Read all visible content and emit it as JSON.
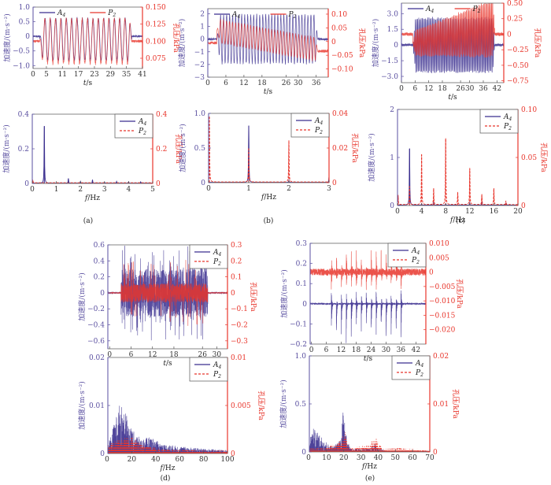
{
  "colors": {
    "a4": "#3b2f8f",
    "p2": "#e8352b",
    "left_axis": "#5a4fa0",
    "right_axis": "#e8352b",
    "frame": "#555555"
  },
  "legend": {
    "a4": "A4",
    "p2": "P2"
  },
  "chart_data": [
    {
      "id": "a-time",
      "panel": "(a)",
      "type": "line",
      "kind": "time",
      "xlabel": "t/s",
      "ylabel": "加速度/(m·s⁻²)",
      "y2label": "孔压/kPa",
      "xlim": [
        0,
        41
      ],
      "ylim": [
        -1.1,
        1.0
      ],
      "y2lim": [
        0.06,
        0.15
      ],
      "xticks": [
        0,
        5,
        11,
        17,
        23,
        29,
        35,
        41
      ],
      "yticks": [
        {
          "v": 1.0,
          "l": "1.0"
        },
        {
          "v": 0.5,
          "l": "0.5"
        },
        {
          "v": 0,
          "l": "0"
        },
        {
          "v": -0.5,
          "l": "-0.5"
        },
        {
          "v": -1.0,
          "l": "-1.0"
        }
      ],
      "y2ticks": [
        {
          "v": 0.15,
          "l": "0.150"
        },
        {
          "v": 0.125,
          "l": "0.125"
        },
        {
          "v": 0.1,
          "l": "0.100"
        },
        {
          "v": 0.075,
          "l": "0.075"
        }
      ],
      "legend_position": "top",
      "signal": {
        "freq_hz": 0.5,
        "start": 2.5,
        "end": 37,
        "a4_amp": 0.75,
        "a4_offset": -0.1,
        "p2_amp": 0.035,
        "p2_center": 0.1,
        "pre_a4": 0.0,
        "pre_p2": 0.1
      }
    },
    {
      "id": "a-freq",
      "panel": "(a)",
      "type": "line",
      "kind": "spectrum",
      "xlabel": "f/Hz",
      "ylabel": "加速度/(m·s⁻²)",
      "y2label": "孔压/kPa",
      "xlim": [
        0,
        5
      ],
      "ylim": [
        0,
        0.4
      ],
      "y2lim": [
        0,
        0.4
      ],
      "xticks": [
        0,
        1,
        2,
        3,
        4,
        5
      ],
      "yticks": [
        {
          "v": 0.4,
          "l": "0.4"
        },
        {
          "v": 0.2,
          "l": "0.2"
        },
        {
          "v": 0,
          "l": "0"
        }
      ],
      "y2ticks": [
        {
          "v": 0.4,
          "l": "0.4"
        },
        {
          "v": 0.2,
          "l": "0.2"
        },
        {
          "v": 0,
          "l": "0"
        }
      ],
      "legend_position": "top-right",
      "a4_peaks": [
        {
          "f": 0.5,
          "v": 0.33
        },
        {
          "f": 1.5,
          "v": 0.028
        },
        {
          "f": 2.0,
          "v": 0.01
        },
        {
          "f": 2.5,
          "v": 0.02
        },
        {
          "f": 3.0,
          "v": 0.006
        },
        {
          "f": 3.5,
          "v": 0.01
        },
        {
          "f": 4.0,
          "v": 0.008
        },
        {
          "f": 4.5,
          "v": 0.008
        }
      ],
      "p2_peaks": [
        {
          "f": 0.02,
          "v": 0.02
        }
      ]
    },
    {
      "id": "b-time",
      "panel": "(b)",
      "type": "line",
      "kind": "time",
      "xlabel": "t/s",
      "ylabel": "加速度/(m·s⁻²)",
      "y2label": "孔压/kPa",
      "xlim": [
        0,
        40
      ],
      "ylim": [
        -3,
        2.4
      ],
      "y2lim": [
        -0.13,
        0.12
      ],
      "xticks": [
        0,
        6,
        12,
        18,
        26,
        30,
        36
      ],
      "yticks": [
        {
          "v": 2,
          "l": "2"
        },
        {
          "v": 1,
          "l": "1"
        },
        {
          "v": 0,
          "l": "0"
        },
        {
          "v": -1,
          "l": "-1"
        },
        {
          "v": -2,
          "l": "-2"
        },
        {
          "v": -3,
          "l": "-3"
        }
      ],
      "y2ticks": [
        {
          "v": 0.1,
          "l": "0.10"
        },
        {
          "v": 0.05,
          "l": "0.05"
        },
        {
          "v": 0,
          "l": "0"
        },
        {
          "v": -0.05,
          "l": "-0.05"
        },
        {
          "v": -0.1,
          "l": "-0.10"
        }
      ],
      "legend_position": "top",
      "signal": {
        "freq_hz": 1.0,
        "start": 3,
        "end": 36.5,
        "a4_amp": 2.0,
        "a4_offset": 0,
        "p2_amp": 0.045,
        "p2_center_start": 0.04,
        "p2_center_end": -0.03,
        "pre_a4": 0,
        "pre_p2": -0.005,
        "post_p2": -0.035
      }
    },
    {
      "id": "b-freq",
      "panel": "(b)",
      "type": "line",
      "kind": "spectrum",
      "xlabel": "f/Hz",
      "ylabel": "加速度/(m·s⁻²)",
      "y2label": "孔压/kPa",
      "xlim": [
        0,
        3
      ],
      "ylim": [
        0,
        1.0
      ],
      "y2lim": [
        0,
        0.04
      ],
      "xticks": [
        0,
        1,
        2,
        3
      ],
      "yticks": [
        {
          "v": 1.0,
          "l": "1.0"
        },
        {
          "v": 0.5,
          "l": "0.5"
        },
        {
          "v": 0,
          "l": "0"
        }
      ],
      "y2ticks": [
        {
          "v": 0.04,
          "l": "0.04"
        },
        {
          "v": 0.02,
          "l": "0.02"
        },
        {
          "v": 0,
          "l": "0"
        }
      ],
      "legend_position": "top-right",
      "a4_peaks": [
        {
          "f": 1.0,
          "v": 0.82
        },
        {
          "f": 2.0,
          "v": 0.03
        },
        {
          "f": 3.0,
          "v": 0.08
        }
      ],
      "p2_peaks": [
        {
          "f": 0.02,
          "v": 0.038
        },
        {
          "f": 1.0,
          "v": 0.02
        },
        {
          "f": 2.0,
          "v": 0.024
        }
      ]
    },
    {
      "id": "c-time",
      "panel": "(c)",
      "type": "line",
      "kind": "time",
      "xlabel": "t/s",
      "ylabel": "加速度/(m·s⁻²)",
      "y2label": "孔压/kPa",
      "xlim": [
        0,
        45
      ],
      "ylim": [
        -3.6,
        4.0
      ],
      "y2lim": [
        -0.78,
        0.5
      ],
      "xticks": [
        0,
        6,
        12,
        18,
        26,
        30,
        36,
        42
      ],
      "yticks": [
        {
          "v": 3.0,
          "l": "3.0"
        },
        {
          "v": 1.5,
          "l": "1.5"
        },
        {
          "v": 0,
          "l": "0"
        },
        {
          "v": -1.5,
          "l": "-1.5"
        },
        {
          "v": -3.0,
          "l": "-3.0"
        }
      ],
      "y2ticks": [
        {
          "v": 0.5,
          "l": "0.50"
        },
        {
          "v": 0.25,
          "l": "0.25"
        },
        {
          "v": 0,
          "l": "0"
        },
        {
          "v": -0.25,
          "l": "-0.25"
        },
        {
          "v": -0.5,
          "l": "-0.50"
        },
        {
          "v": -0.75,
          "l": "-0.75"
        }
      ],
      "legend_position": "top",
      "signal": {
        "freq_hz": 2.0,
        "start": 5,
        "end": 41,
        "a4_amp": 2.7,
        "a4_offset": 0,
        "p2_amp": 0.35,
        "p2_center": -0.15,
        "pre_a4": 0,
        "pre_p2": 0.0
      }
    },
    {
      "id": "c-freq",
      "panel": "(c)",
      "type": "line",
      "kind": "spectrum",
      "xlabel": "f/Hz",
      "ylabel": "加速度/(m·s⁻²)",
      "y2label": "孔压/kPa",
      "xlim": [
        0,
        20
      ],
      "ylim": [
        0,
        2
      ],
      "y2lim": [
        0,
        0.1
      ],
      "xticks": [
        0,
        4,
        8,
        12,
        16,
        20
      ],
      "yticks": [
        {
          "v": 2,
          "l": "2"
        },
        {
          "v": 1,
          "l": "1"
        },
        {
          "v": 0,
          "l": "0"
        }
      ],
      "y2ticks": [
        {
          "v": 0.1,
          "l": "0.10"
        },
        {
          "v": 0.05,
          "l": "0.05"
        },
        {
          "v": 0,
          "l": "0"
        }
      ],
      "legend_position": "top-right",
      "a4_peaks": [
        {
          "f": 2,
          "v": 1.18
        },
        {
          "f": 4,
          "v": 0.03
        },
        {
          "f": 6,
          "v": 0.05
        },
        {
          "f": 8,
          "v": 0.03
        },
        {
          "f": 12,
          "v": 0.05
        },
        {
          "f": 14,
          "v": 0.05
        },
        {
          "f": 18,
          "v": 0.04
        }
      ],
      "p2_peaks": [
        {
          "f": 0.1,
          "v": 0.01
        },
        {
          "f": 2,
          "v": 0.02
        },
        {
          "f": 4,
          "v": 0.053
        },
        {
          "f": 6,
          "v": 0.017
        },
        {
          "f": 8,
          "v": 0.069
        },
        {
          "f": 10,
          "v": 0.013
        },
        {
          "f": 12,
          "v": 0.038
        },
        {
          "f": 14,
          "v": 0.011
        },
        {
          "f": 16,
          "v": 0.017
        },
        {
          "f": 18,
          "v": 0.004
        }
      ]
    },
    {
      "id": "d-time",
      "panel": "(d)",
      "type": "line",
      "kind": "noise-time",
      "xlabel": "t/s",
      "ylabel": "加速度/(m·s⁻²)",
      "y2label": "孔压/kPa",
      "xlim": [
        -0.5,
        33
      ],
      "ylim": [
        -0.7,
        0.6
      ],
      "y2lim": [
        -0.35,
        0.3
      ],
      "xticks": [
        0,
        6,
        12,
        18,
        26,
        30
      ],
      "yticks": [
        {
          "v": 0.6,
          "l": "0.6"
        },
        {
          "v": 0.4,
          "l": "0.4"
        },
        {
          "v": 0.2,
          "l": "0.2"
        },
        {
          "v": 0,
          "l": "0"
        },
        {
          "v": -0.2,
          "l": "-0.2"
        },
        {
          "v": -0.4,
          "l": "-0.4"
        },
        {
          "v": -0.6,
          "l": "-0.6"
        }
      ],
      "y2ticks": [
        {
          "v": 0.3,
          "l": "0.3"
        },
        {
          "v": 0.2,
          "l": "0.2"
        },
        {
          "v": 0.1,
          "l": "0.1"
        },
        {
          "v": 0,
          "l": "0"
        },
        {
          "v": -0.1,
          "l": "-0.1"
        },
        {
          "v": -0.2,
          "l": "-0.2"
        },
        {
          "v": -0.3,
          "l": "-0.3"
        }
      ],
      "legend_position": "top-right",
      "signal": {
        "start": 3.2,
        "end": 27.5,
        "a4_amp": 0.3,
        "p2_amp": 0.06
      }
    },
    {
      "id": "d-freq",
      "panel": "(d)",
      "type": "area",
      "kind": "noise-spectrum",
      "xlabel": "f/Hz",
      "ylabel": "加速度/(m·s⁻²)",
      "y2label": "孔压/kPa",
      "xlim": [
        0,
        100
      ],
      "ylim": [
        0,
        0.02
      ],
      "y2lim": [
        0,
        0.01
      ],
      "xticks": [
        20,
        40,
        60,
        80,
        100
      ],
      "xzero": "0",
      "yticks": [
        {
          "v": 0.02,
          "l": "0.02"
        },
        {
          "v": 0.01,
          "l": "0.01"
        },
        {
          "v": 0,
          "l": "0"
        }
      ],
      "y2ticks": [
        {
          "v": 0.01,
          "l": "0.01"
        },
        {
          "v": 0.005,
          "l": "0.005"
        },
        {
          "v": 0,
          "l": "0"
        }
      ],
      "legend_position": "top-right",
      "a4_envelope": [
        [
          0,
          0.002
        ],
        [
          5,
          0.006
        ],
        [
          10,
          0.0105
        ],
        [
          14,
          0.009
        ],
        [
          20,
          0.005
        ],
        [
          28,
          0.003
        ],
        [
          36,
          0.0035
        ],
        [
          45,
          0.002
        ],
        [
          60,
          0.0015
        ],
        [
          80,
          0.001
        ],
        [
          100,
          0.0007
        ]
      ],
      "p2_envelope": [
        [
          0,
          0.0008
        ],
        [
          8,
          0.0015
        ],
        [
          20,
          0.0018
        ],
        [
          30,
          0.0008
        ],
        [
          50,
          0.0004
        ],
        [
          100,
          0.0003
        ]
      ]
    },
    {
      "id": "e-time",
      "panel": "(e)",
      "type": "line",
      "kind": "burst-time",
      "xlabel": "t/s",
      "ylabel": "加速度/(m·s⁻²)",
      "y2label": "孔压/kPa",
      "xlim": [
        -0.5,
        46
      ],
      "ylim": [
        -0.2,
        0.3
      ],
      "y2lim": [
        -0.025,
        0.01
      ],
      "xticks": [
        0,
        6,
        12,
        18,
        24,
        30,
        36,
        42
      ],
      "yticks": [
        {
          "v": 0.3,
          "l": "0.3"
        },
        {
          "v": 0.2,
          "l": "0.2"
        },
        {
          "v": 0.1,
          "l": "0.1"
        },
        {
          "v": 0,
          "l": "0"
        },
        {
          "v": -0.1,
          "l": "-0.1"
        },
        {
          "v": -0.2,
          "l": "-0.2"
        }
      ],
      "y2ticks": [
        {
          "v": 0.01,
          "l": "0.010"
        },
        {
          "v": 0.005,
          "l": "0.005"
        },
        {
          "v": 0,
          "l": "0"
        },
        {
          "v": -0.005,
          "l": "-0.005"
        },
        {
          "v": -0.01,
          "l": "-0.010"
        },
        {
          "v": -0.015,
          "l": "-0.015"
        },
        {
          "v": -0.02,
          "l": "-0.020"
        }
      ],
      "legend_position": "top-right",
      "bursts_t": [
        8,
        10,
        12,
        14,
        16,
        18,
        20,
        22,
        24,
        26,
        28,
        30,
        32,
        34,
        36
      ],
      "signal": {
        "a4_burst": 0.2,
        "p2_burst": 0.008,
        "p2_center": 0.0,
        "a4_center": 0.0
      }
    },
    {
      "id": "e-freq",
      "panel": "(e)",
      "type": "area",
      "kind": "noise-spectrum",
      "xlabel": "f/Hz",
      "ylabel": "加速度/(m·s⁻²)",
      "y2label": "孔压/kPa",
      "xlim": [
        0,
        70
      ],
      "ylim": [
        0,
        1.0
      ],
      "y2lim": [
        0,
        0.02
      ],
      "xticks": [
        10,
        20,
        30,
        40,
        50,
        60,
        70
      ],
      "xzero": "0",
      "yticks": [
        {
          "v": 1.0,
          "l": "1.0"
        },
        {
          "v": 0.5,
          "l": "0.5"
        },
        {
          "v": 0,
          "l": "0"
        }
      ],
      "y2ticks": [
        {
          "v": 0.02,
          "l": "0.02"
        },
        {
          "v": 0.01,
          "l": "0.01"
        },
        {
          "v": 0,
          "l": "0"
        }
      ],
      "legend_position": "top-right",
      "a4_envelope": [
        [
          0,
          0.12
        ],
        [
          2,
          0.25
        ],
        [
          5,
          0.2
        ],
        [
          8,
          0.15
        ],
        [
          11,
          0.08
        ],
        [
          14,
          0.05
        ],
        [
          17,
          0.12
        ],
        [
          18.5,
          0.15
        ],
        [
          19,
          0.3
        ],
        [
          20,
          0.5
        ],
        [
          21,
          0.35
        ],
        [
          22,
          0.1
        ],
        [
          25,
          0.03
        ],
        [
          35,
          0.03
        ],
        [
          38,
          0.08
        ],
        [
          40,
          0.05
        ],
        [
          42,
          0.03
        ],
        [
          45,
          0.01
        ],
        [
          70,
          0.01
        ]
      ],
      "p2_envelope": [
        [
          0,
          0.0008
        ],
        [
          10,
          0.001
        ],
        [
          13,
          0.002
        ],
        [
          15,
          0.0012
        ],
        [
          19,
          0.003
        ],
        [
          20,
          0.005
        ],
        [
          21,
          0.004
        ],
        [
          23,
          0.0008
        ],
        [
          35,
          0.0015
        ],
        [
          38,
          0.0035
        ],
        [
          40,
          0.002
        ],
        [
          43,
          0.0006
        ],
        [
          50,
          0.0009
        ],
        [
          70,
          0.0003
        ]
      ]
    }
  ],
  "panel_labels": [
    "(a)",
    "(b)",
    "(c)",
    "(d)",
    "(e)"
  ]
}
